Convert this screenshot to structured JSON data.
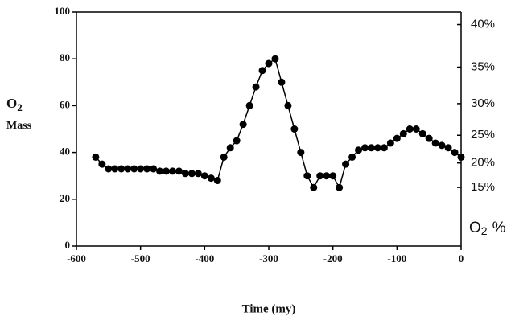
{
  "chart_data": {
    "type": "line",
    "y_label": {
      "symbol": "O",
      "subscript": "2",
      "word": "Mass"
    },
    "y2_label": {
      "symbol": "O",
      "subscript": "2",
      "unit": "%"
    },
    "x_label": "Time (my)",
    "series": [
      {
        "name": "O2 Mass",
        "color": "#000000",
        "x": [
          -570,
          -560,
          -550,
          -540,
          -530,
          -520,
          -510,
          -500,
          -490,
          -480,
          -470,
          -460,
          -450,
          -440,
          -430,
          -420,
          -410,
          -400,
          -390,
          -380,
          -370,
          -360,
          -350,
          -340,
          -330,
          -320,
          -310,
          -300,
          -290,
          -280,
          -270,
          -260,
          -250,
          -240,
          -230,
          -220,
          -210,
          -200,
          -190,
          -180,
          -170,
          -160,
          -150,
          -140,
          -130,
          -120,
          -110,
          -100,
          -90,
          -80,
          -70,
          -60,
          -50,
          -40,
          -30,
          -20,
          -10,
          0
        ],
        "values": [
          38,
          35,
          33,
          33,
          33,
          33,
          33,
          33,
          33,
          33,
          32,
          32,
          32,
          32,
          31,
          31,
          31,
          30,
          29,
          28,
          38,
          42,
          45,
          52,
          60,
          68,
          75,
          78,
          80,
          70,
          60,
          50,
          40,
          30,
          25,
          30,
          30,
          30,
          25,
          35,
          38,
          41,
          42,
          42,
          42,
          42,
          44,
          46,
          48,
          50,
          50,
          48,
          46,
          44,
          43,
          42,
          40,
          38
        ]
      }
    ],
    "xlim": [
      -600,
      0
    ],
    "xticks": [
      -600,
      -500,
      -400,
      -300,
      -200,
      -100,
      0
    ],
    "ylim": [
      0,
      100
    ],
    "yticks": [
      0,
      20,
      40,
      60,
      80,
      100
    ],
    "y2scale": {
      "type": "mass-fraction",
      "k": 142
    },
    "y2ticks": [
      {
        "value": 40,
        "label": "40%"
      },
      {
        "value": 35,
        "label": "35%"
      },
      {
        "value": 30,
        "label": "30%"
      },
      {
        "value": 25,
        "label": "25%"
      },
      {
        "value": 20,
        "label": "20%"
      },
      {
        "value": 15,
        "label": "15%"
      }
    ]
  }
}
